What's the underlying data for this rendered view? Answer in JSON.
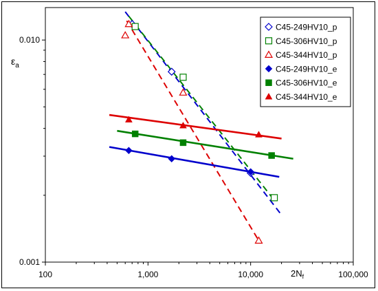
{
  "chart_data": {
    "type": "scatter",
    "title": "",
    "xlabel": "2N",
    "xlabel_sub": "f",
    "ylabel": "ε",
    "ylabel_sub": "a",
    "xscale": "log",
    "yscale": "log",
    "xlim": [
      100,
      100000
    ],
    "ylim": [
      0.001,
      0.014
    ],
    "x_ticks": [
      100,
      1000,
      10000,
      100000
    ],
    "x_tick_labels": [
      "100",
      "1,000",
      "10,000",
      "100,000"
    ],
    "y_ticks": [
      0.001,
      0.01
    ],
    "y_tick_labels": [
      "0.001",
      "0.010"
    ],
    "grid": false,
    "legend_position": "top-right",
    "series": [
      {
        "name": "C45-249HV10_p",
        "color": "#0000cc",
        "marker": "diamond-open",
        "points": [
          {
            "x": 700,
            "y": 0.0118
          },
          {
            "x": 1700,
            "y": 0.0072
          },
          {
            "x": 10000,
            "y": 0.00252
          }
        ],
        "fit": {
          "x": [
            600,
            20000
          ],
          "y": [
            0.0134,
            0.00163
          ],
          "style": "dashed"
        }
      },
      {
        "name": "C45-306HV10_p",
        "color": "#008000",
        "marker": "square-open",
        "points": [
          {
            "x": 750,
            "y": 0.0115
          },
          {
            "x": 2200,
            "y": 0.0068
          },
          {
            "x": 17000,
            "y": 0.00195
          }
        ],
        "fit": {
          "x": [
            650,
            17000
          ],
          "y": [
            0.0128,
            0.0019
          ],
          "style": "dashed"
        }
      },
      {
        "name": "C45-344HV10_p",
        "color": "#dd0000",
        "marker": "triangle-open",
        "points": [
          {
            "x": 600,
            "y": 0.0105
          },
          {
            "x": 650,
            "y": 0.0118
          },
          {
            "x": 2200,
            "y": 0.0058
          },
          {
            "x": 12000,
            "y": 0.00125
          }
        ],
        "fit": {
          "x": [
            620,
            12000
          ],
          "y": [
            0.0122,
            0.00125
          ],
          "style": "dashed"
        }
      },
      {
        "name": "C45-249HV10_e",
        "color": "#0000cc",
        "marker": "diamond",
        "points": [
          {
            "x": 650,
            "y": 0.00318
          },
          {
            "x": 1700,
            "y": 0.00292
          },
          {
            "x": 10000,
            "y": 0.00255
          }
        ],
        "fit": {
          "x": [
            420,
            19000
          ],
          "y": [
            0.0033,
            0.00242
          ],
          "style": "solid"
        }
      },
      {
        "name": "C45-306HV10_e",
        "color": "#008000",
        "marker": "square",
        "points": [
          {
            "x": 750,
            "y": 0.00378
          },
          {
            "x": 2200,
            "y": 0.00345
          },
          {
            "x": 16000,
            "y": 0.00302
          }
        ],
        "fit": {
          "x": [
            500,
            26000
          ],
          "y": [
            0.0039,
            0.00292
          ],
          "style": "solid"
        }
      },
      {
        "name": "C45-344HV10_e",
        "color": "#dd0000",
        "marker": "triangle",
        "points": [
          {
            "x": 650,
            "y": 0.00438
          },
          {
            "x": 2200,
            "y": 0.00412
          },
          {
            "x": 12000,
            "y": 0.00375
          }
        ],
        "fit": {
          "x": [
            420,
            20000
          ],
          "y": [
            0.0046,
            0.0036
          ],
          "style": "solid"
        }
      }
    ]
  }
}
